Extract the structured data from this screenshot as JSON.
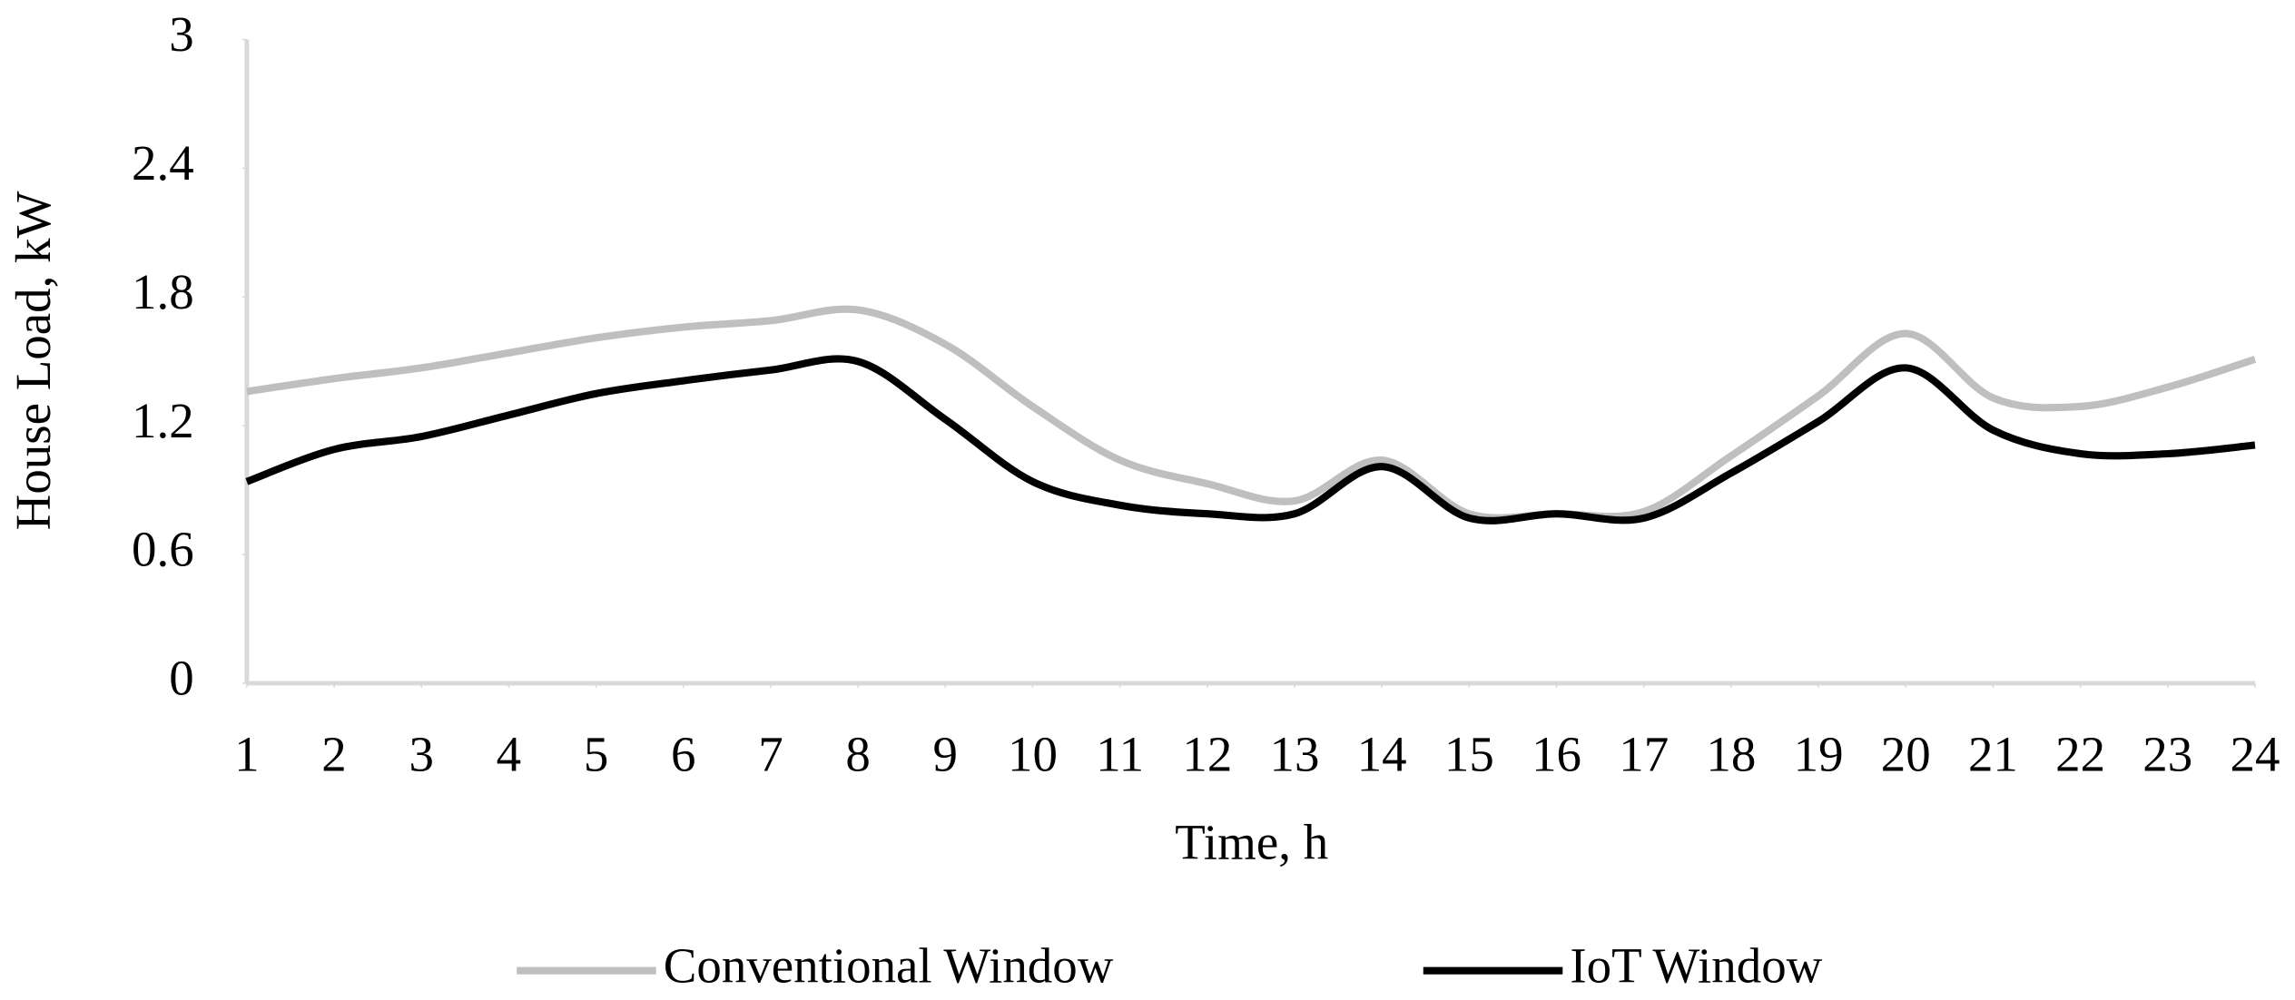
{
  "chart_data": {
    "type": "line",
    "x_label": "Time, h",
    "y_label": "House Load, kW",
    "x": [
      1,
      2,
      3,
      4,
      5,
      6,
      7,
      8,
      9,
      10,
      11,
      12,
      13,
      14,
      15,
      16,
      17,
      18,
      19,
      20,
      21,
      22,
      23,
      24
    ],
    "series": [
      {
        "name": "Conventional Window",
        "color": "#bfbfbf",
        "values": [
          1.36,
          1.42,
          1.47,
          1.54,
          1.61,
          1.66,
          1.69,
          1.74,
          1.58,
          1.29,
          1.04,
          0.93,
          0.85,
          1.04,
          0.79,
          0.79,
          0.8,
          1.06,
          1.34,
          1.63,
          1.33,
          1.29,
          1.38,
          1.51
        ]
      },
      {
        "name": "IoT Window",
        "color": "#000000",
        "values": [
          0.94,
          1.09,
          1.15,
          1.25,
          1.35,
          1.41,
          1.46,
          1.5,
          1.23,
          0.94,
          0.83,
          0.79,
          0.79,
          1.01,
          0.77,
          0.79,
          0.77,
          0.98,
          1.22,
          1.47,
          1.18,
          1.07,
          1.07,
          1.11
        ]
      }
    ],
    "xlim": [
      1,
      24
    ],
    "xticks": [
      1,
      2,
      3,
      4,
      5,
      6,
      7,
      8,
      9,
      10,
      11,
      12,
      13,
      14,
      15,
      16,
      17,
      18,
      19,
      20,
      21,
      22,
      23,
      24
    ],
    "ylim": [
      0,
      3
    ],
    "yticks": [
      0,
      0.6,
      1.2,
      1.8,
      2.4,
      3
    ],
    "grid": false,
    "legend": "bottom",
    "smooth": true
  }
}
